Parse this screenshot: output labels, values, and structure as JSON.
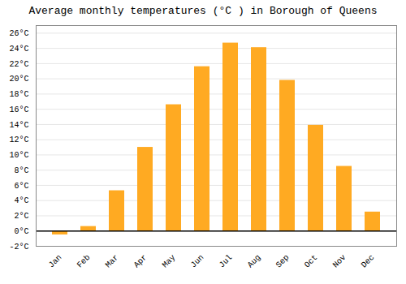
{
  "chart_data": {
    "type": "bar",
    "title": "Average monthly temperatures (°C ) in Borough of Queens",
    "categories": [
      "Jan",
      "Feb",
      "Mar",
      "Apr",
      "May",
      "Jun",
      "Jul",
      "Aug",
      "Sep",
      "Oct",
      "Nov",
      "Dec"
    ],
    "values": [
      -0.5,
      0.6,
      5.3,
      11.0,
      16.6,
      21.6,
      24.7,
      24.1,
      19.8,
      13.9,
      8.5,
      2.5
    ],
    "color": "#FFAA22",
    "ylim": [
      -2,
      27
    ],
    "yticks": [
      {
        "value": -2,
        "label": "-2°C"
      },
      {
        "value": 0,
        "label": "0°C"
      },
      {
        "value": 2,
        "label": "2°C"
      },
      {
        "value": 4,
        "label": "4°C"
      },
      {
        "value": 6,
        "label": "6°C"
      },
      {
        "value": 8,
        "label": "8°C"
      },
      {
        "value": 10,
        "label": "10°C"
      },
      {
        "value": 12,
        "label": "12°C"
      },
      {
        "value": 14,
        "label": "14°C"
      },
      {
        "value": 16,
        "label": "16°C"
      },
      {
        "value": 18,
        "label": "18°C"
      },
      {
        "value": 20,
        "label": "20°C"
      },
      {
        "value": 22,
        "label": "22°C"
      },
      {
        "value": 24,
        "label": "24°C"
      },
      {
        "value": 26,
        "label": "26°C"
      }
    ],
    "grid": true
  }
}
